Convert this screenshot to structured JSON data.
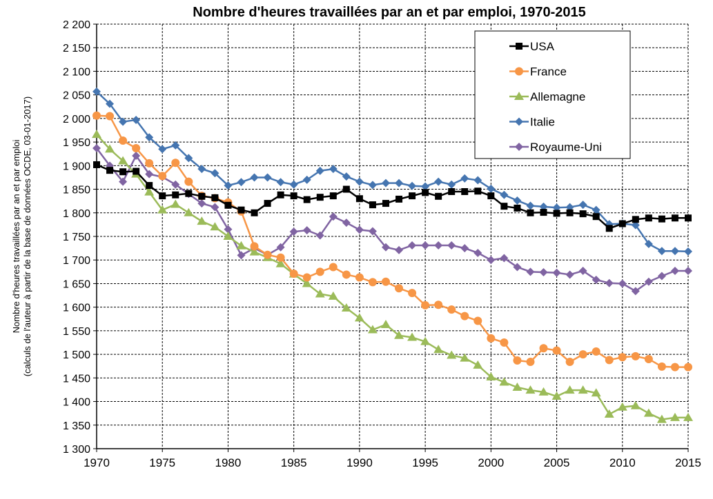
{
  "chart_data": {
    "type": "line",
    "title": "Nombre d'heures travaillées par an et par emploi, 1970-2015",
    "ylabel_lines": [
      "Nombre d'heures travaillées par an et par emploi",
      "(calculs de l'auteur à partir de la base de données OCDE, 03-01-2017)"
    ],
    "xlabel": "",
    "xlim": [
      1970,
      2015
    ],
    "ylim": [
      1300,
      2200
    ],
    "x_ticks": [
      1970,
      1975,
      1980,
      1985,
      1990,
      1995,
      2000,
      2005,
      2010,
      2015
    ],
    "y_ticks": [
      1300,
      1350,
      1400,
      1450,
      1500,
      1550,
      1600,
      1650,
      1700,
      1750,
      1800,
      1850,
      1900,
      1950,
      2000,
      2050,
      2100,
      2150,
      2200
    ],
    "y_tick_labels": [
      "1 300",
      "1 350",
      "1 400",
      "1 450",
      "1 500",
      "1 550",
      "1 600",
      "1 650",
      "1 700",
      "1 750",
      "1 800",
      "1 850",
      "1 900",
      "1 950",
      "2 000",
      "2 050",
      "2 100",
      "2 150",
      "2 200"
    ],
    "grid": true,
    "legend_position": "top-right",
    "x": [
      1970,
      1971,
      1972,
      1973,
      1974,
      1975,
      1976,
      1977,
      1978,
      1979,
      1980,
      1981,
      1982,
      1983,
      1984,
      1985,
      1986,
      1987,
      1988,
      1989,
      1990,
      1991,
      1992,
      1993,
      1994,
      1995,
      1996,
      1997,
      1998,
      1999,
      2000,
      2001,
      2002,
      2003,
      2004,
      2005,
      2006,
      2007,
      2008,
      2009,
      2010,
      2011,
      2012,
      2013,
      2014,
      2015
    ],
    "series": [
      {
        "name": "USA",
        "color": "#000000",
        "marker": "square",
        "values": [
          1902,
          1890,
          1887,
          1888,
          1858,
          1836,
          1838,
          1841,
          1835,
          1832,
          1816,
          1806,
          1800,
          1820,
          1838,
          1836,
          1828,
          1833,
          1836,
          1850,
          1830,
          1817,
          1820,
          1829,
          1836,
          1843,
          1835,
          1845,
          1845,
          1846,
          1836,
          1814,
          1810,
          1800,
          1801,
          1799,
          1800,
          1798,
          1792,
          1767,
          1777,
          1786,
          1789,
          1787,
          1789,
          1789
        ]
      },
      {
        "name": "France",
        "color": "#F79646",
        "marker": "circle",
        "values": [
          2006,
          2005,
          1953,
          1937,
          1905,
          1878,
          1906,
          1866,
          1836,
          1831,
          1822,
          1803,
          1729,
          1711,
          1705,
          1671,
          1663,
          1675,
          1685,
          1669,
          1663,
          1653,
          1654,
          1640,
          1630,
          1604,
          1605,
          1595,
          1581,
          1571,
          1534,
          1525,
          1487,
          1484,
          1513,
          1508,
          1484,
          1500,
          1506,
          1488,
          1494,
          1496,
          1490,
          1474,
          1473,
          1473
        ]
      },
      {
        "name": "Allemagne",
        "color": "#9BBB59",
        "marker": "triangle",
        "values": [
          1966,
          1935,
          1910,
          1882,
          1844,
          1806,
          1818,
          1800,
          1782,
          1770,
          1750,
          1730,
          1717,
          1705,
          1692,
          1670,
          1650,
          1628,
          1623,
          1598,
          1577,
          1552,
          1563,
          1540,
          1536,
          1527,
          1510,
          1498,
          1492,
          1477,
          1452,
          1441,
          1430,
          1424,
          1420,
          1411,
          1424,
          1424,
          1418,
          1373,
          1388,
          1391,
          1375,
          1362,
          1366,
          1366
        ]
      },
      {
        "name": "Italie",
        "color": "#4575B0",
        "marker": "diamond",
        "values": [
          2057,
          2031,
          1993,
          1997,
          1960,
          1935,
          1943,
          1916,
          1893,
          1884,
          1858,
          1865,
          1875,
          1875,
          1865,
          1860,
          1870,
          1889,
          1893,
          1877,
          1866,
          1859,
          1863,
          1863,
          1857,
          1856,
          1866,
          1860,
          1873,
          1869,
          1851,
          1838,
          1826,
          1815,
          1813,
          1811,
          1812,
          1817,
          1806,
          1776,
          1777,
          1774,
          1734,
          1719,
          1719,
          1718
        ]
      },
      {
        "name": "Royaume-Uni",
        "color": "#8064A2",
        "marker": "diamond",
        "values": [
          1937,
          1900,
          1866,
          1921,
          1882,
          1876,
          1860,
          1840,
          1820,
          1812,
          1765,
          1710,
          1725,
          1711,
          1727,
          1760,
          1763,
          1752,
          1792,
          1779,
          1764,
          1761,
          1727,
          1721,
          1731,
          1731,
          1731,
          1731,
          1725,
          1715,
          1700,
          1704,
          1685,
          1675,
          1674,
          1673,
          1669,
          1677,
          1658,
          1651,
          1650,
          1634,
          1654,
          1666,
          1677,
          1677
        ]
      }
    ]
  }
}
